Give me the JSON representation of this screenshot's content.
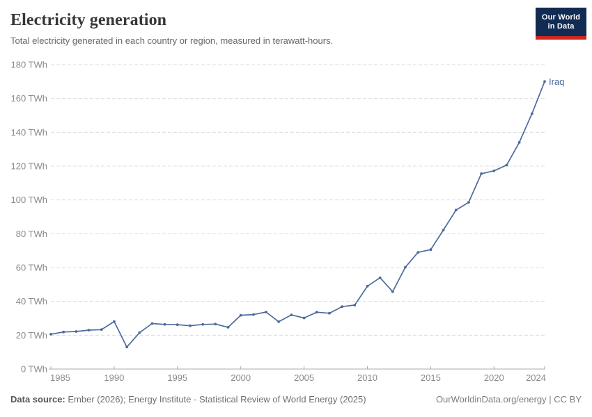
{
  "header": {
    "title": "Electricity generation",
    "subtitle": "Total electricity generated in each country or region, measured in terawatt-hours."
  },
  "logo": {
    "line1": "Our World",
    "line2": "in Data",
    "bg_color": "#122B52",
    "stripe_color": "#D0281F"
  },
  "chart_data": {
    "type": "line",
    "title": "Electricity generation",
    "subtitle": "Total electricity generated in each country or region, measured in terawatt-hours.",
    "unit": "TWh",
    "xlabel": "",
    "ylabel": "",
    "xlim": [
      1985,
      2024
    ],
    "ylim": [
      0,
      180
    ],
    "grid": "dashed-horizontal",
    "legend_position": "end-of-line-label",
    "x_ticks": [
      1985,
      1990,
      1995,
      2000,
      2005,
      2010,
      2015,
      2020,
      2024
    ],
    "y_ticks": [
      0,
      20,
      40,
      60,
      80,
      100,
      120,
      140,
      160,
      180
    ],
    "y_tick_label_format": "{v} TWh",
    "x": [
      1985,
      1986,
      1987,
      1988,
      1989,
      1990,
      1991,
      1992,
      1993,
      1994,
      1995,
      1996,
      1997,
      1998,
      1999,
      2000,
      2001,
      2002,
      2003,
      2004,
      2005,
      2006,
      2007,
      2008,
      2009,
      2010,
      2011,
      2012,
      2013,
      2014,
      2015,
      2016,
      2017,
      2018,
      2019,
      2020,
      2021,
      2022,
      2023,
      2024
    ],
    "series": [
      {
        "name": "Iraq",
        "color": "#4C6A9C",
        "values": [
          20.6,
          21.9,
          22.2,
          23.0,
          23.3,
          28.1,
          13.0,
          21.5,
          26.9,
          26.4,
          26.2,
          25.6,
          26.4,
          26.6,
          24.7,
          31.8,
          32.2,
          33.7,
          28.0,
          32.0,
          30.2,
          33.6,
          33.0,
          36.9,
          37.8,
          49.0,
          54.0,
          45.8,
          60.2,
          69.0,
          70.6,
          82.2,
          94.0,
          98.6,
          115.5,
          117.2,
          120.6,
          134.0,
          151.0,
          170.0
        ]
      }
    ]
  },
  "footer": {
    "source_label": "Data source:",
    "source_text": " Ember (2026); Energy Institute - Statistical Review of World Energy (2025)",
    "credit": "OurWorldinData.org/energy | CC BY"
  },
  "colors": {
    "series_blue": "#4C6A9C",
    "grid": "#dcdcdc",
    "axis": "#ababab",
    "tick_text": "#8a8a8a",
    "title_text": "#373737",
    "subtitle_text": "#666666"
  }
}
